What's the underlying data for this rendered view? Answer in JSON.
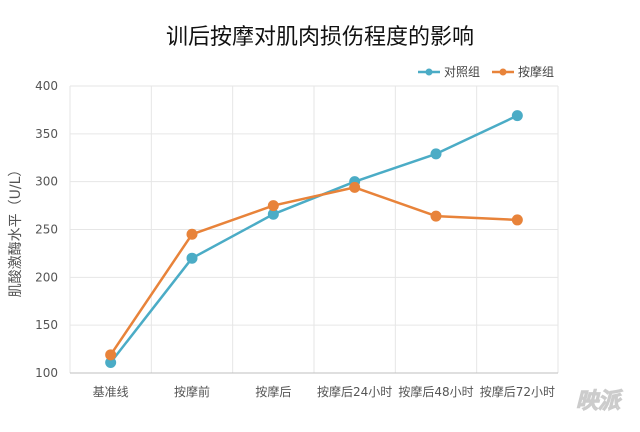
{
  "chart_data": {
    "type": "line",
    "title": "训后按摩对肌肉损伤程度的影响",
    "xlabel": "",
    "ylabel": "肌酸激酶水平（U/L）",
    "categories": [
      "基准线",
      "按摩前",
      "按摩后",
      "按摩后24小时",
      "按摩后48小时",
      "按摩后72小时"
    ],
    "series": [
      {
        "name": "对照组",
        "color": "#4BACC6",
        "values": [
          111,
          220,
          266,
          300,
          329,
          369
        ]
      },
      {
        "name": "按摩组",
        "color": "#E8833A",
        "values": [
          119,
          245,
          275,
          294,
          264,
          260
        ]
      }
    ],
    "ylim": [
      100,
      400
    ],
    "yticks": [
      100,
      150,
      200,
      250,
      300,
      350,
      400
    ],
    "grid": true,
    "legend": "top-right"
  },
  "watermark": "映派"
}
